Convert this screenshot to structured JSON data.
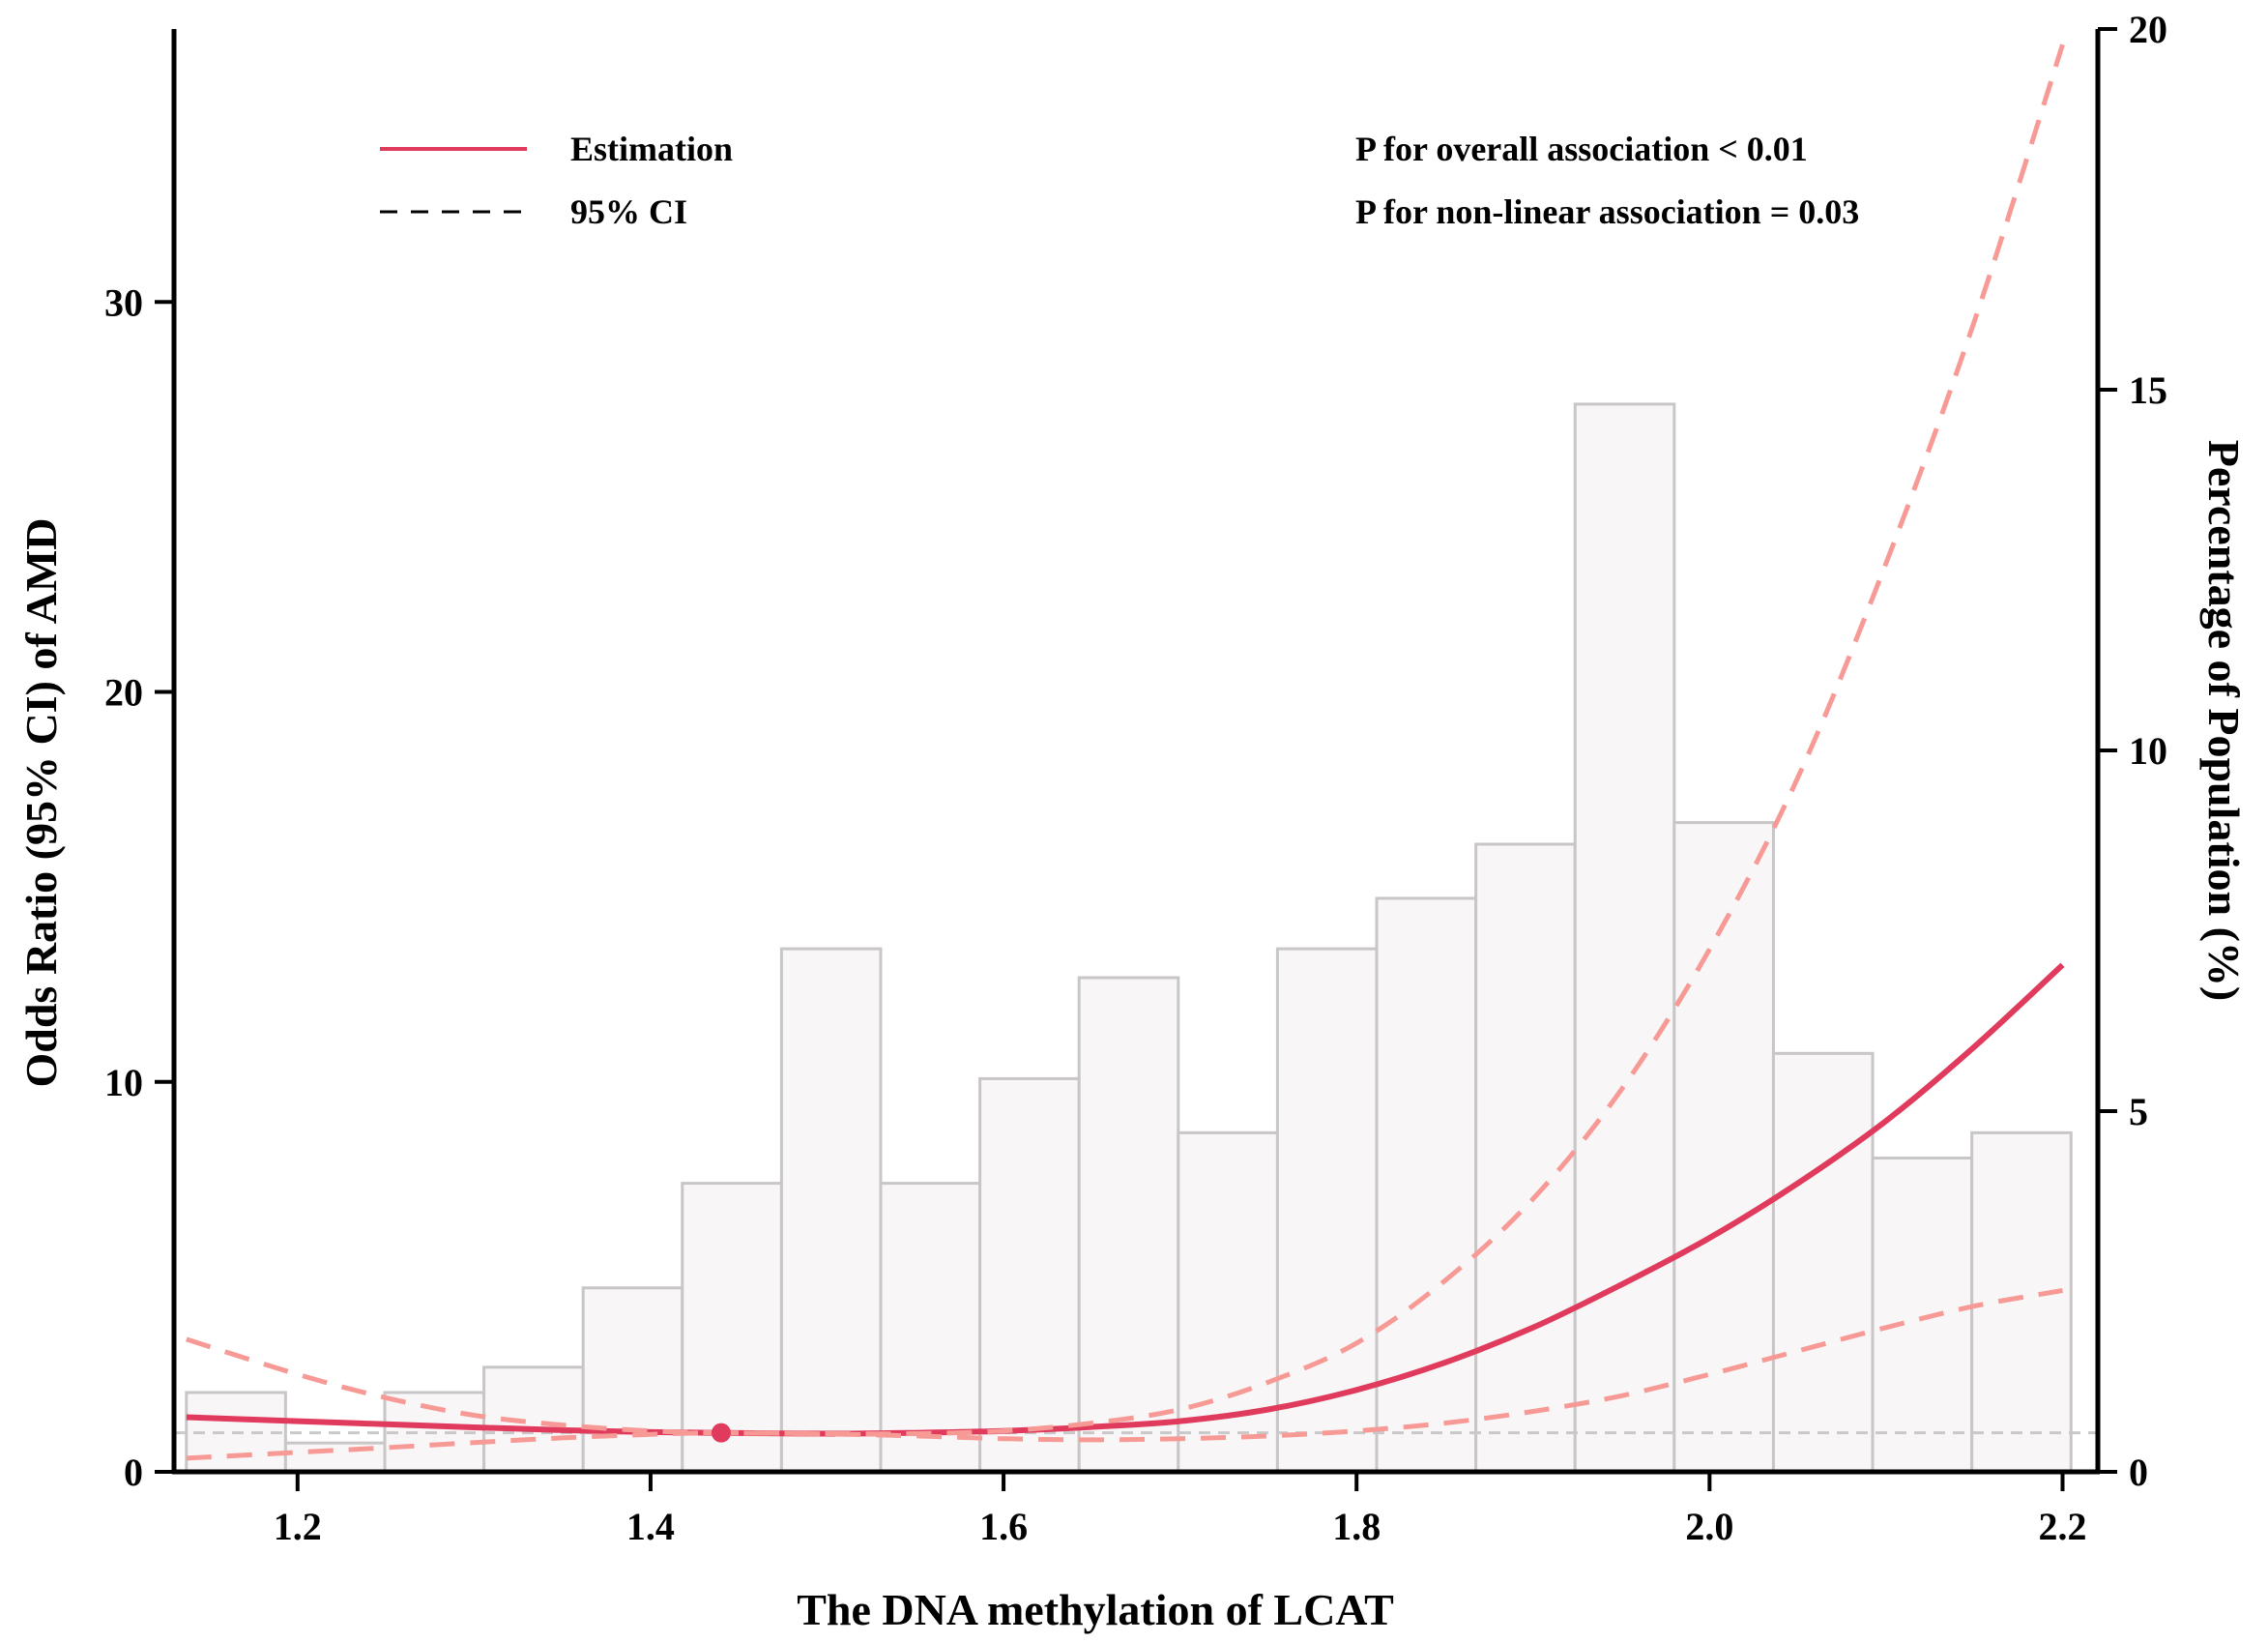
{
  "chart_data": {
    "type": "line",
    "subtype": "restricted-cubic-spline-with-histogram",
    "xlabel": "The DNA methylation of LCAT",
    "ylabel": "Odds Ratio (95% CI) of AMD",
    "y2label": "Percentage of Population (%)",
    "xlim": [
      1.13,
      2.22
    ],
    "ylim": [
      0,
      37
    ],
    "y2lim": [
      0,
      20
    ],
    "xticks": [
      1.2,
      1.4,
      1.6,
      1.8,
      2.0,
      2.2
    ],
    "xtick_labels": [
      "1.2",
      "1.4",
      "1.6",
      "1.8",
      "2.0",
      "2.2"
    ],
    "yticks": [
      0,
      10,
      20,
      30
    ],
    "ytick_labels": [
      "0",
      "10",
      "20",
      "30"
    ],
    "y2ticks": [
      0,
      5,
      10,
      15,
      20
    ],
    "y2tick_labels": [
      "0",
      "5",
      "10",
      "15",
      "20"
    ],
    "reference_line": 1,
    "reference_point": {
      "x": 1.44,
      "y": 1.0
    },
    "legend": {
      "estimation_label": "Estimation",
      "ci_label": "95% CI"
    },
    "annotations": [
      "P for overall association < 0.01",
      "P for non-linear association = 0.03"
    ],
    "histogram": {
      "bin_start": 1.137,
      "bin_width": 0.0562,
      "percentages": [
        1.1,
        0.4,
        1.1,
        1.45,
        2.55,
        4.0,
        7.25,
        4.0,
        5.45,
        6.85,
        4.7,
        7.25,
        7.95,
        8.7,
        14.8,
        9.0,
        5.8,
        4.35,
        4.7
      ]
    },
    "series": [
      {
        "name": "Estimation",
        "x": [
          1.137,
          1.2,
          1.25,
          1.3,
          1.35,
          1.4,
          1.44,
          1.5,
          1.55,
          1.6,
          1.65,
          1.7,
          1.75,
          1.8,
          1.85,
          1.9,
          1.95,
          2.0,
          2.05,
          2.1,
          2.15,
          2.2
        ],
        "values": [
          1.4,
          1.3,
          1.22,
          1.14,
          1.07,
          1.02,
          1.0,
          0.98,
          1.0,
          1.05,
          1.15,
          1.3,
          1.6,
          2.1,
          2.8,
          3.7,
          4.8,
          6.0,
          7.4,
          9.0,
          10.9,
          13.0
        ]
      },
      {
        "name": "Upper 95% CI",
        "x": [
          1.137,
          1.2,
          1.25,
          1.3,
          1.35,
          1.4,
          1.44,
          1.5,
          1.55,
          1.6,
          1.65,
          1.7,
          1.75,
          1.8,
          1.85,
          1.9,
          1.95,
          2.0,
          2.05,
          2.1,
          2.15,
          2.2
        ],
        "values": [
          3.4,
          2.5,
          1.9,
          1.45,
          1.2,
          1.05,
          1.0,
          0.98,
          0.98,
          1.05,
          1.25,
          1.6,
          2.3,
          3.3,
          4.9,
          7.0,
          9.8,
          13.4,
          17.8,
          23.3,
          29.5,
          36.6
        ]
      },
      {
        "name": "Lower 95% CI",
        "x": [
          1.137,
          1.2,
          1.25,
          1.3,
          1.35,
          1.4,
          1.44,
          1.5,
          1.55,
          1.6,
          1.65,
          1.7,
          1.75,
          1.8,
          1.85,
          1.9,
          1.95,
          2.0,
          2.05,
          2.1,
          2.15,
          2.2
        ],
        "values": [
          0.35,
          0.5,
          0.62,
          0.75,
          0.87,
          0.96,
          1.0,
          0.97,
          0.92,
          0.85,
          0.82,
          0.85,
          0.92,
          1.05,
          1.25,
          1.55,
          1.95,
          2.5,
          3.1,
          3.7,
          4.25,
          4.65
        ]
      }
    ],
    "colors": {
      "estimation": "#e03a5c",
      "ci": "#f79a96",
      "bar_fill": "#f8f6f7",
      "bar_stroke": "#c8c6c7",
      "reference": "#c9c9c9",
      "axis": "#000000"
    }
  }
}
